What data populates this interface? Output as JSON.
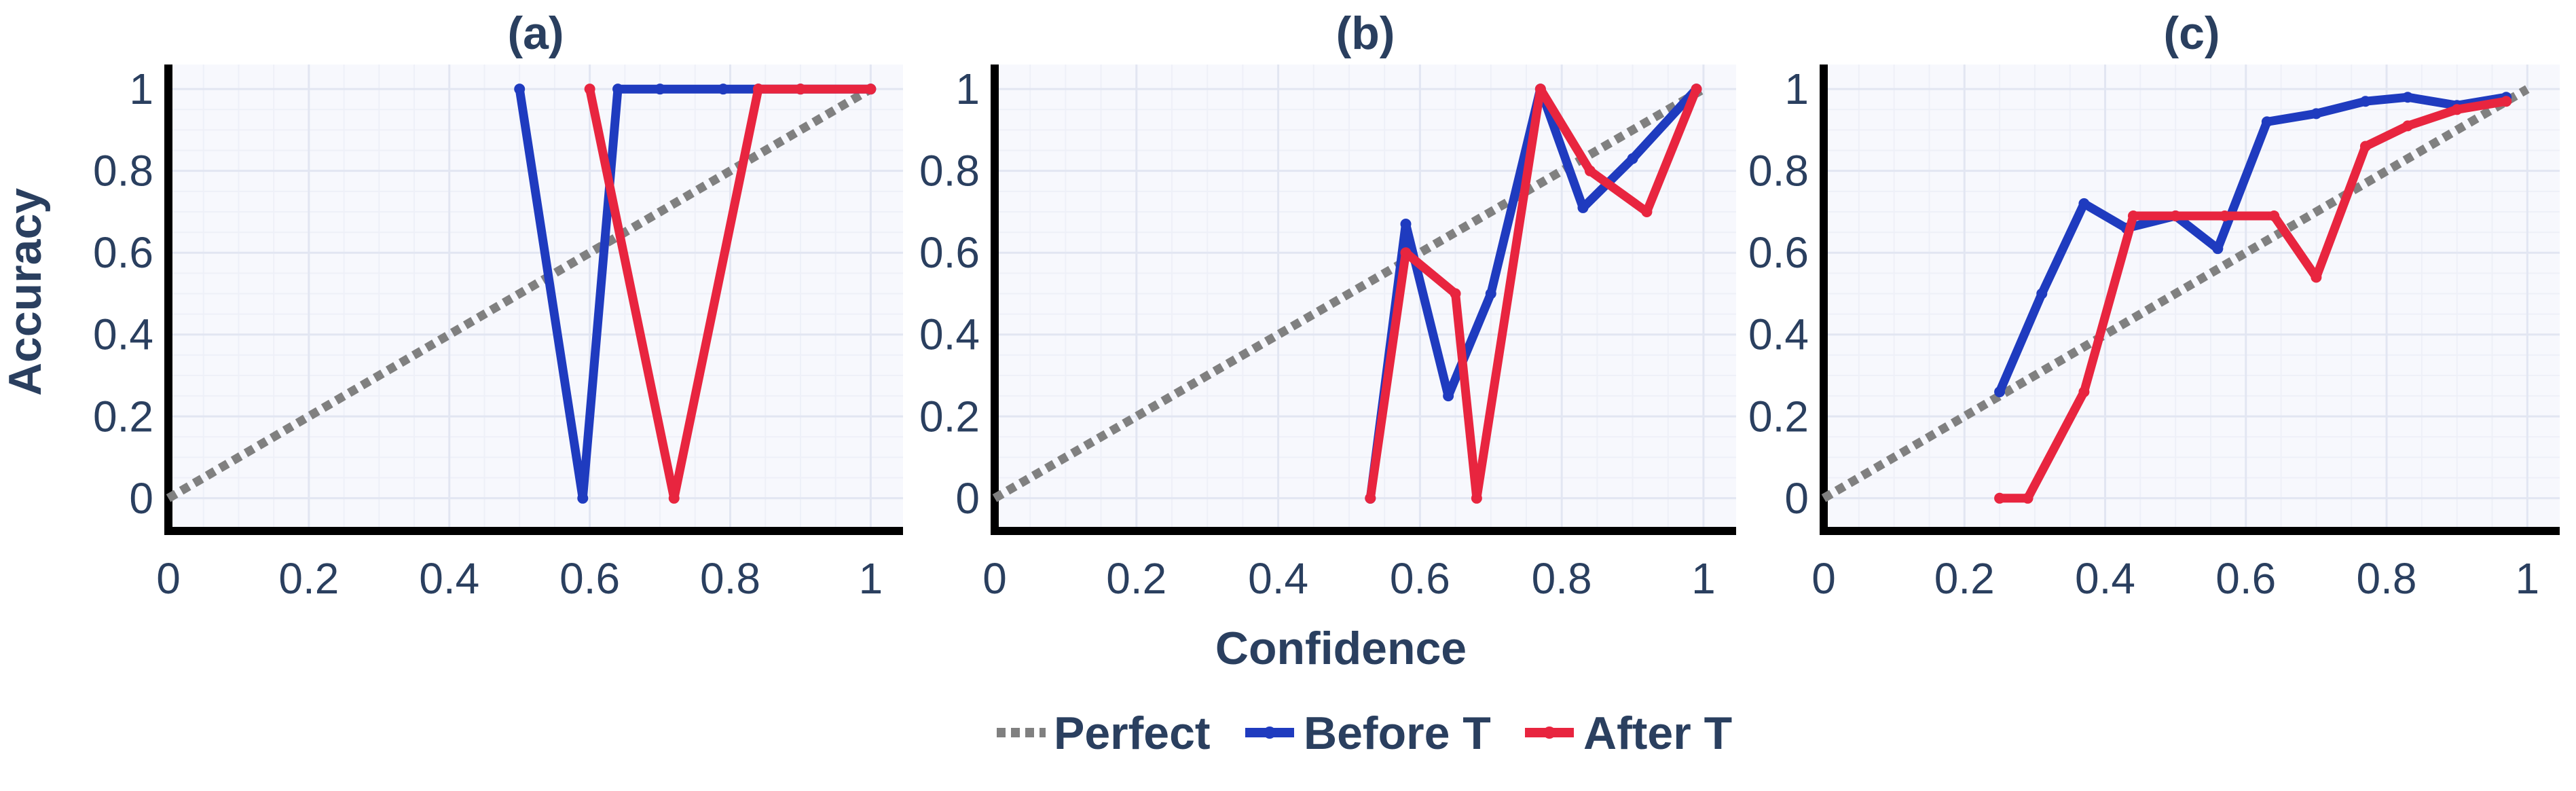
{
  "chart_data": {
    "type": "line",
    "xlabel": "Confidence",
    "ylabel": "Accuracy",
    "xlim": [
      0,
      1
    ],
    "ylim": [
      -0.08,
      1.06
    ],
    "grid": true,
    "legend_position": "bottom-center",
    "tick_values": [
      0,
      0.2,
      0.4,
      0.6,
      0.8,
      1
    ],
    "tick_labels": [
      "0",
      "0.2",
      "0.4",
      "0.6",
      "0.8",
      "1"
    ],
    "legend": [
      {
        "key": "perfect",
        "label": "Perfect",
        "color": "#808080",
        "style": "dotted"
      },
      {
        "key": "before",
        "label": "Before T",
        "color": "#1f3bbf",
        "style": "solid"
      },
      {
        "key": "after",
        "label": "After T",
        "color": "#e8253f",
        "style": "solid"
      }
    ],
    "panels": [
      {
        "title": "(a)",
        "series": [
          {
            "key": "perfect",
            "x": [
              0,
              1
            ],
            "y": [
              0,
              1
            ]
          },
          {
            "key": "before",
            "x": [
              0.5,
              0.59,
              0.64,
              0.7,
              0.79,
              0.84,
              0.9,
              1.0
            ],
            "y": [
              1,
              0,
              1,
              1,
              1,
              1,
              1,
              1
            ]
          },
          {
            "key": "after",
            "x": [
              0.6,
              0.72,
              0.84,
              0.9,
              1.0
            ],
            "y": [
              1,
              0,
              1,
              1,
              1
            ]
          }
        ]
      },
      {
        "title": "(b)",
        "series": [
          {
            "key": "perfect",
            "x": [
              0,
              1
            ],
            "y": [
              0,
              1
            ]
          },
          {
            "key": "before",
            "x": [
              0.53,
              0.58,
              0.64,
              0.7,
              0.77,
              0.83,
              0.9,
              0.99
            ],
            "y": [
              0,
              0.67,
              0.25,
              0.5,
              1,
              0.71,
              0.83,
              1
            ]
          },
          {
            "key": "after",
            "x": [
              0.53,
              0.58,
              0.65,
              0.68,
              0.77,
              0.84,
              0.92,
              0.99
            ],
            "y": [
              0,
              0.6,
              0.5,
              0,
              1,
              0.8,
              0.7,
              1
            ]
          }
        ]
      },
      {
        "title": "(c)",
        "series": [
          {
            "key": "perfect",
            "x": [
              0,
              1
            ],
            "y": [
              0,
              1
            ]
          },
          {
            "key": "before",
            "x": [
              0.25,
              0.31,
              0.37,
              0.43,
              0.5,
              0.56,
              0.63,
              0.7,
              0.77,
              0.83,
              0.9,
              0.97
            ],
            "y": [
              0.26,
              0.5,
              0.72,
              0.66,
              0.69,
              0.61,
              0.92,
              0.94,
              0.97,
              0.98,
              0.96,
              0.98
            ]
          },
          {
            "key": "after",
            "x": [
              0.25,
              0.29,
              0.37,
              0.44,
              0.5,
              0.57,
              0.64,
              0.7,
              0.77,
              0.83,
              0.9,
              0.97
            ],
            "y": [
              0,
              0,
              0.26,
              0.69,
              0.69,
              0.69,
              0.69,
              0.54,
              0.86,
              0.91,
              0.95,
              0.97
            ]
          }
        ]
      }
    ]
  }
}
